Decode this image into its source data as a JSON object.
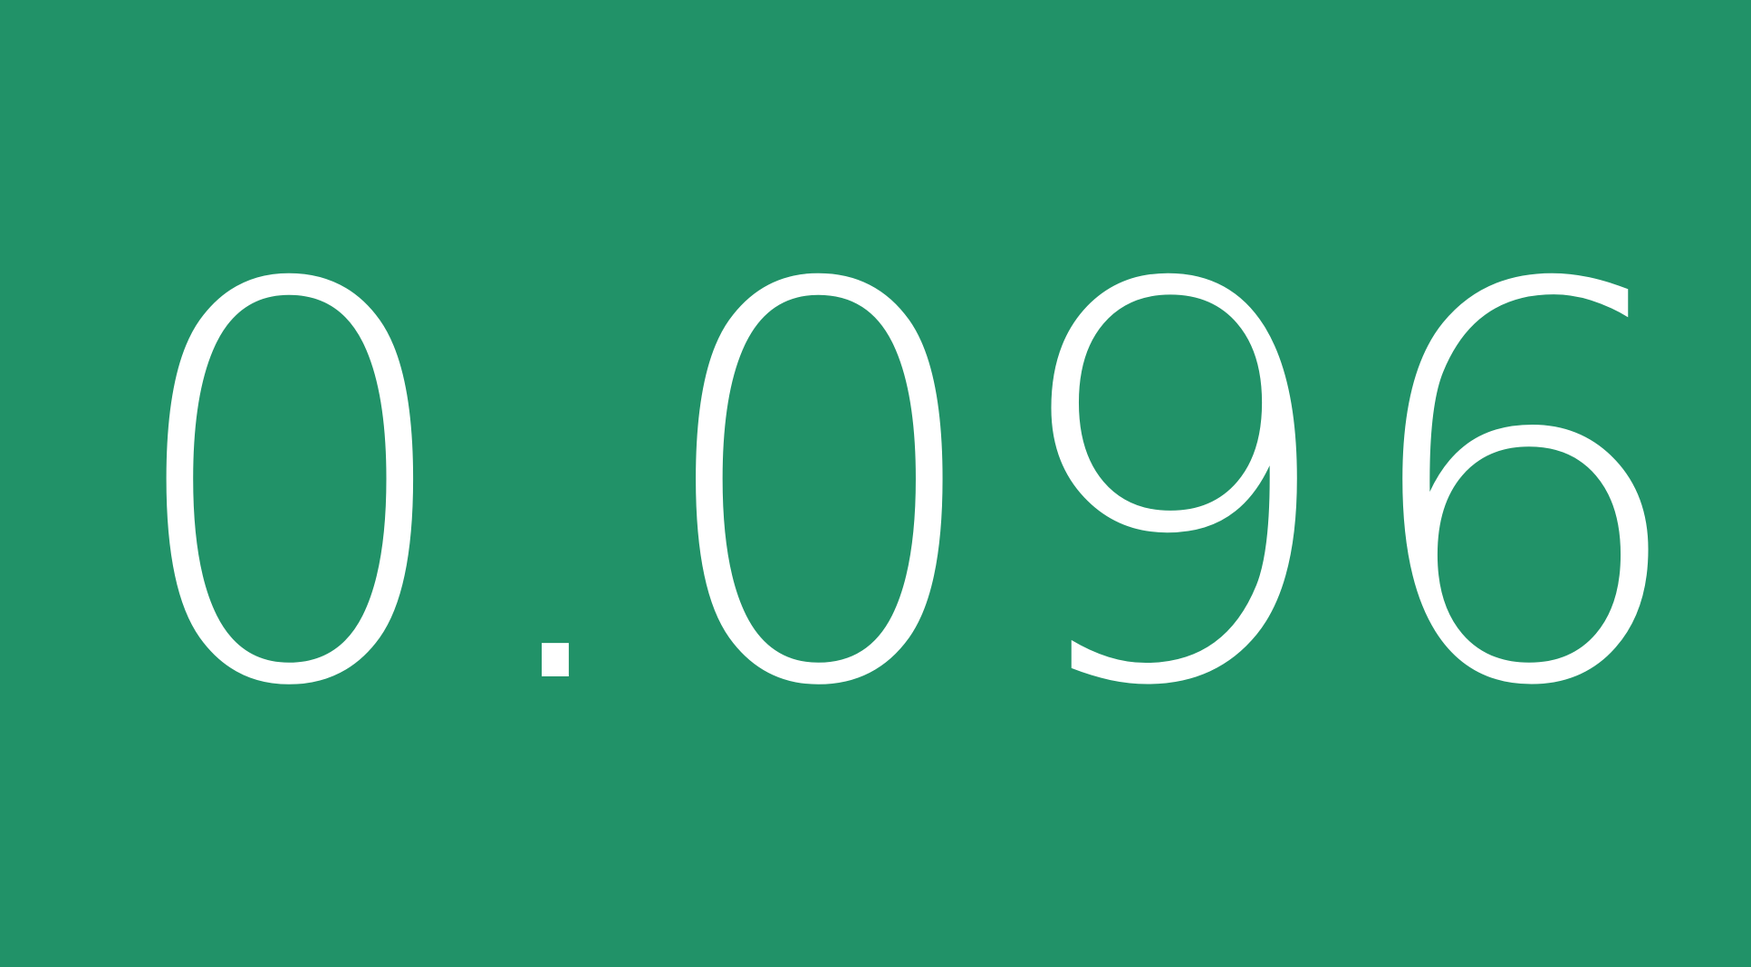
{
  "tile": {
    "value": "0.096",
    "background_color": "#219268",
    "text_color": "#ffffff"
  }
}
